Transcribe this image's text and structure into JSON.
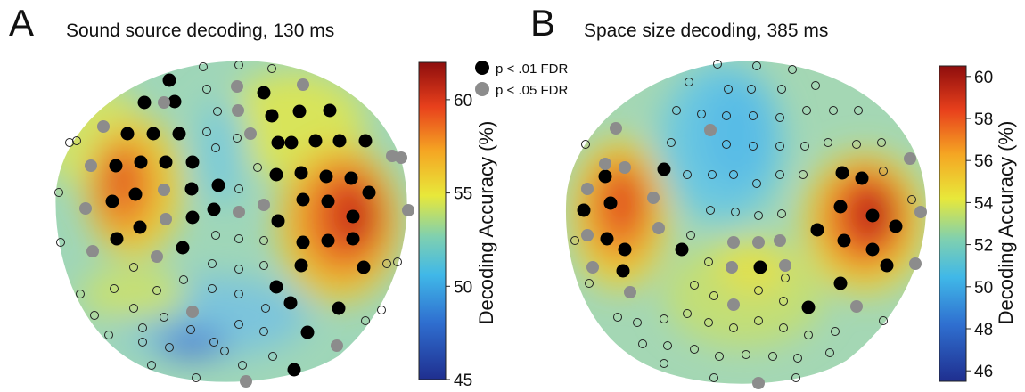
{
  "panels": [
    {
      "letter": "A",
      "title": "Sound source decoding, 130 ms",
      "colorbar": {
        "label": "Decoding Accuracy (%)",
        "min": 45,
        "max": 62,
        "ticks": [
          "45",
          "50",
          "55",
          "60"
        ]
      },
      "legend": [
        {
          "marker": "black-dot",
          "label": "p < .01 FDR"
        },
        {
          "marker": "gray-dot",
          "label": "p < .05 FDR"
        }
      ]
    },
    {
      "letter": "B",
      "title": "Space size decoding, 385 ms",
      "colorbar": {
        "label": "Decoding Accuracy (%)",
        "min": 45.5,
        "max": 60.5,
        "ticks": [
          "46",
          "48",
          "50",
          "52",
          "54",
          "56",
          "58",
          "60"
        ]
      }
    }
  ],
  "colors": {
    "significant_p01": "#000000",
    "significant_p05": "#8c8c8c",
    "nonsignificant_outline": "#222222",
    "colormap": [
      "#1f2f8f",
      "#2f6fd0",
      "#40b8e8",
      "#7fd0b0",
      "#e8e83a",
      "#f5a623",
      "#e8401c",
      "#8e0d0d"
    ]
  }
}
